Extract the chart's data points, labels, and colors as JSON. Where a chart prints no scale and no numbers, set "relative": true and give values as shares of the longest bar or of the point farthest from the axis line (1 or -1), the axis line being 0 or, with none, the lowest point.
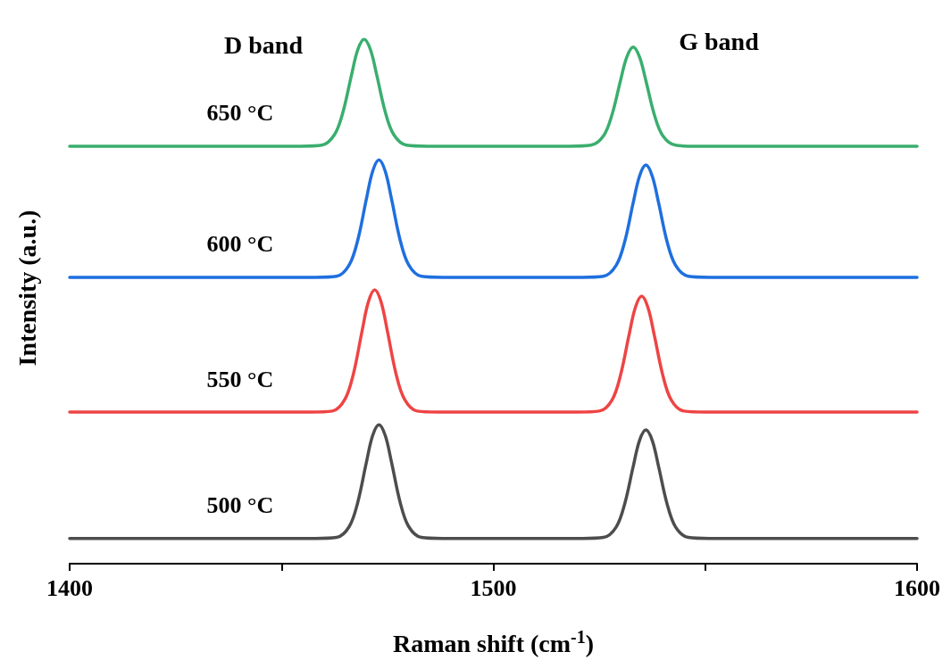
{
  "chart_data": {
    "type": "line",
    "relative": true,
    "xlabel": "Raman shift (cm$^{-1}$)",
    "ylabel": "Intensity (a.u.)",
    "xlim": [
      1400,
      1600
    ],
    "xticks": [
      1400,
      {
        "value": 1450,
        "label": null
      },
      1500,
      {
        "value": 1550,
        "label": null
      },
      1600
    ],
    "grid": false,
    "legend": false,
    "marker": "none",
    "line_style": "solid",
    "annotations": [
      "D band",
      "G band"
    ],
    "series": [
      {
        "name": "500 °C",
        "color": "#4d4d4d",
        "x": [
          1400,
          1445,
          1458,
          1463,
          1466,
          1468,
          1470,
          1471.5,
          1473,
          1474.5,
          1476,
          1478,
          1480,
          1483,
          1488,
          1521,
          1526,
          1529,
          1531,
          1533,
          1534.5,
          1536,
          1537.5,
          1539,
          1541,
          1543,
          1546,
          1551,
          1600
        ],
        "values": [
          0.048,
          0.048,
          0.048,
          0.05,
          0.071,
          0.117,
          0.192,
          0.244,
          0.265,
          0.244,
          0.192,
          0.117,
          0.071,
          0.05,
          0.048,
          0.048,
          0.05,
          0.07,
          0.114,
          0.185,
          0.235,
          0.255,
          0.235,
          0.185,
          0.114,
          0.07,
          0.05,
          0.048,
          0.048
        ]
      },
      {
        "name": "550 °C",
        "color": "#ee4444",
        "x": [
          1400,
          1445,
          1457,
          1462,
          1465,
          1467,
          1469,
          1470.5,
          1472,
          1473.5,
          1475,
          1477,
          1479,
          1482,
          1487,
          1520,
          1525,
          1528,
          1530,
          1532,
          1533.5,
          1535,
          1536.5,
          1538,
          1540,
          1542,
          1545,
          1550,
          1600
        ],
        "values": [
          0.289,
          0.289,
          0.289,
          0.291,
          0.314,
          0.363,
          0.443,
          0.499,
          0.522,
          0.499,
          0.443,
          0.363,
          0.314,
          0.291,
          0.289,
          0.289,
          0.291,
          0.312,
          0.359,
          0.435,
          0.488,
          0.51,
          0.488,
          0.435,
          0.359,
          0.312,
          0.291,
          0.289,
          0.289
        ]
      },
      {
        "name": "600 °C",
        "color": "#1f6fdf",
        "x": [
          1400,
          1445,
          1458,
          1463,
          1466,
          1468,
          1470,
          1471.5,
          1473,
          1474.5,
          1476,
          1478,
          1480,
          1483,
          1488,
          1521,
          1526,
          1529,
          1531,
          1533,
          1534.5,
          1536,
          1537.5,
          1539,
          1541,
          1543,
          1546,
          1551,
          1600
        ],
        "values": [
          0.546,
          0.546,
          0.546,
          0.548,
          0.57,
          0.617,
          0.694,
          0.748,
          0.77,
          0.748,
          0.694,
          0.617,
          0.57,
          0.548,
          0.546,
          0.546,
          0.548,
          0.569,
          0.614,
          0.688,
          0.739,
          0.76,
          0.739,
          0.688,
          0.614,
          0.569,
          0.548,
          0.546,
          0.546
        ]
      },
      {
        "name": "650 °C",
        "color": "#3aae6e",
        "x": [
          1400,
          1445,
          1454.5,
          1459.5,
          1462.5,
          1464.5,
          1466.5,
          1468,
          1469.5,
          1471,
          1472.5,
          1474.5,
          1476.5,
          1479.5,
          1484.5,
          1518,
          1523,
          1526,
          1528,
          1530,
          1531.5,
          1533,
          1534.5,
          1536,
          1538,
          1540,
          1543,
          1548,
          1600
        ],
        "values": [
          0.796,
          0.796,
          0.796,
          0.798,
          0.818,
          0.861,
          0.931,
          0.98,
          1.0,
          0.98,
          0.931,
          0.861,
          0.818,
          0.798,
          0.796,
          0.796,
          0.798,
          0.816,
          0.856,
          0.921,
          0.966,
          0.985,
          0.966,
          0.921,
          0.856,
          0.816,
          0.798,
          0.796,
          0.796
        ]
      }
    ]
  }
}
